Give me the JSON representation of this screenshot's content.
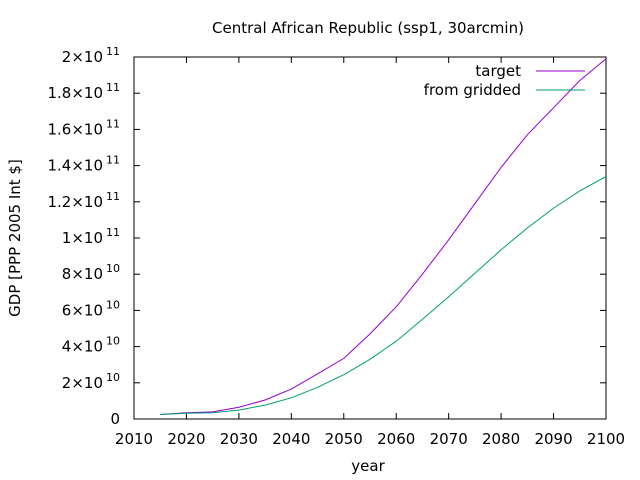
{
  "chart_data": {
    "type": "line",
    "title": "Central African Republic (ssp1, 30arcmin)",
    "xlabel": "year",
    "ylabel": "GDP [PPP 2005 Int $]",
    "xlim": [
      2010,
      2100
    ],
    "ylim": [
      0,
      200000000000
    ],
    "x_ticks": [
      "2010",
      "2020",
      "2030",
      "2040",
      "2050",
      "2060",
      "2070",
      "2080",
      "2090",
      "2100"
    ],
    "y_ticks": [
      {
        "mant": "0",
        "exp": ""
      },
      {
        "mant": "2x10",
        "exp": "10"
      },
      {
        "mant": "4x10",
        "exp": "10"
      },
      {
        "mant": "6x10",
        "exp": "10"
      },
      {
        "mant": "8x10",
        "exp": "10"
      },
      {
        "mant": "1x10",
        "exp": "11"
      },
      {
        "mant": "1.2x10",
        "exp": "11"
      },
      {
        "mant": "1.4x10",
        "exp": "11"
      },
      {
        "mant": "1.6x10",
        "exp": "11"
      },
      {
        "mant": "1.8x10",
        "exp": "11"
      },
      {
        "mant": "2x10",
        "exp": "11"
      }
    ],
    "grid": false,
    "legend_position": "top-right",
    "x": [
      2015,
      2020,
      2025,
      2030,
      2035,
      2040,
      2045,
      2050,
      2055,
      2060,
      2065,
      2070,
      2075,
      2080,
      2085,
      2090,
      2095,
      2100
    ],
    "series": [
      {
        "name": "target",
        "color": "#9400d3",
        "values": [
          2500000000.0,
          3500000000.0,
          3900000000.0,
          6500000000.0,
          10500000000.0,
          16500000000.0,
          25000000000.0,
          33500000000.0,
          47000000000.0,
          62000000000.0,
          80000000000.0,
          99000000000.0,
          119000000000.0,
          139000000000.0,
          157000000000.0,
          172000000000.0,
          187000000000.0,
          199000000000.0
        ]
      },
      {
        "name": "from gridded",
        "color": "#009e73",
        "values": [
          2500000000.0,
          3200000000.0,
          3400000000.0,
          4900000000.0,
          7700000000.0,
          11700000000.0,
          17500000000.0,
          24500000000.0,
          33000000000.0,
          43000000000.0,
          55000000000.0,
          67500000000.0,
          80500000000.0,
          93500000000.0,
          105500000000.0,
          116500000000.0,
          126000000000.0,
          134000000000.0
        ]
      }
    ]
  }
}
